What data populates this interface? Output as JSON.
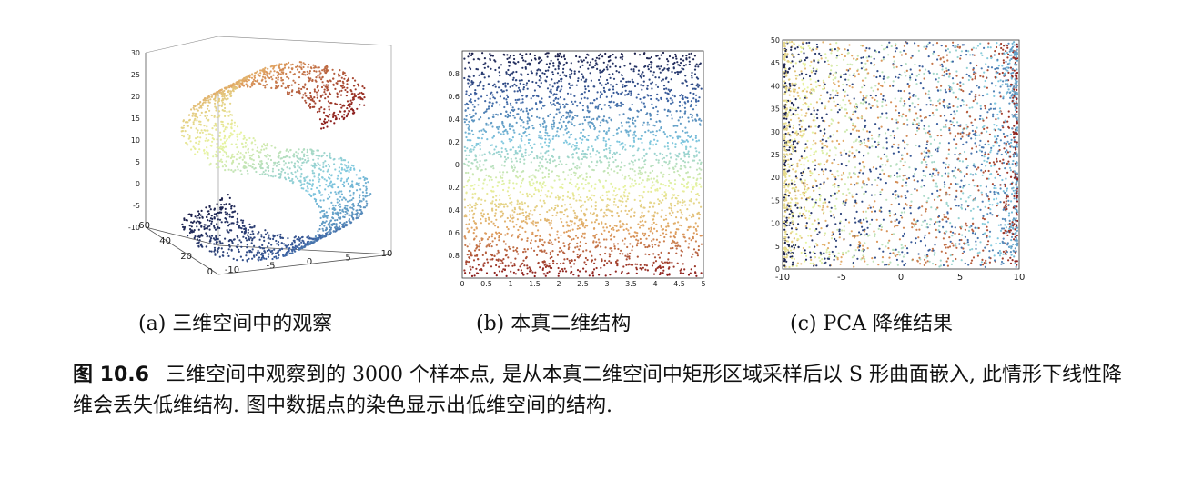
{
  "figure": {
    "subfigures": [
      {
        "label": "(a) 三维空间中的观察"
      },
      {
        "label": "(b) 本真二维结构"
      },
      {
        "label": "(c) PCA 降维结果"
      }
    ],
    "caption_label": "图 10.6",
    "caption_text": "三维空间中观察到的 3000 个样本点, 是从本真二维空间中矩形区域采样后以 S 形曲面嵌入, 此情形下线性降维会丢失低维结构. 图中数据点的染色显示出低维空间的结构."
  },
  "colormap": [
    "#1b1f4a",
    "#3a5fa0",
    "#7fc8e0",
    "#e8f4a0",
    "#e0a060",
    "#8a1a1a"
  ],
  "chart_data": [
    {
      "type": "scatter",
      "title": "(a) 三维空间中的观察",
      "xlabel": "",
      "ylabel": "",
      "zlabel": "",
      "xticks": [
        "-10",
        "-5",
        "0",
        "5",
        "10"
      ],
      "yticks": [
        "0",
        "20",
        "40",
        "60"
      ],
      "zticks": [
        "-10",
        "-5",
        "0",
        "5",
        "10",
        "15",
        "20",
        "25",
        "30"
      ],
      "xlim": [
        -10,
        10
      ],
      "ylim": [
        0,
        60
      ],
      "zlim": [
        -10,
        30
      ],
      "shape": "S-shaped surface",
      "n_points": 3000
    },
    {
      "type": "scatter",
      "title": "(b) 本真二维结构",
      "xlabel": "",
      "ylabel": "",
      "xticks": [
        "0",
        "0.5",
        "1",
        "1.5",
        "2",
        "2.5",
        "3",
        "3.5",
        "4",
        "4.5",
        "5"
      ],
      "yticks": [
        "-0.8",
        "-0.6",
        "-0.4",
        "-0.2",
        "0",
        "0.2",
        "0.4",
        "0.6",
        "0.8"
      ],
      "xlim": [
        0,
        5
      ],
      "ylim": [
        -1,
        1
      ],
      "color_gradient": "vertical",
      "n_points": 3000
    },
    {
      "type": "scatter",
      "title": "(c) PCA 降维结果",
      "xlabel": "",
      "ylabel": "",
      "xticks": [
        "-10",
        "-5",
        "0",
        "5",
        "10"
      ],
      "yticks": [
        "0",
        "5",
        "10",
        "15",
        "20",
        "25",
        "30",
        "35",
        "40",
        "45",
        "50"
      ],
      "xlim": [
        -10,
        10
      ],
      "ylim": [
        0,
        50
      ],
      "color_gradient": "mixed",
      "n_points": 3000
    }
  ]
}
